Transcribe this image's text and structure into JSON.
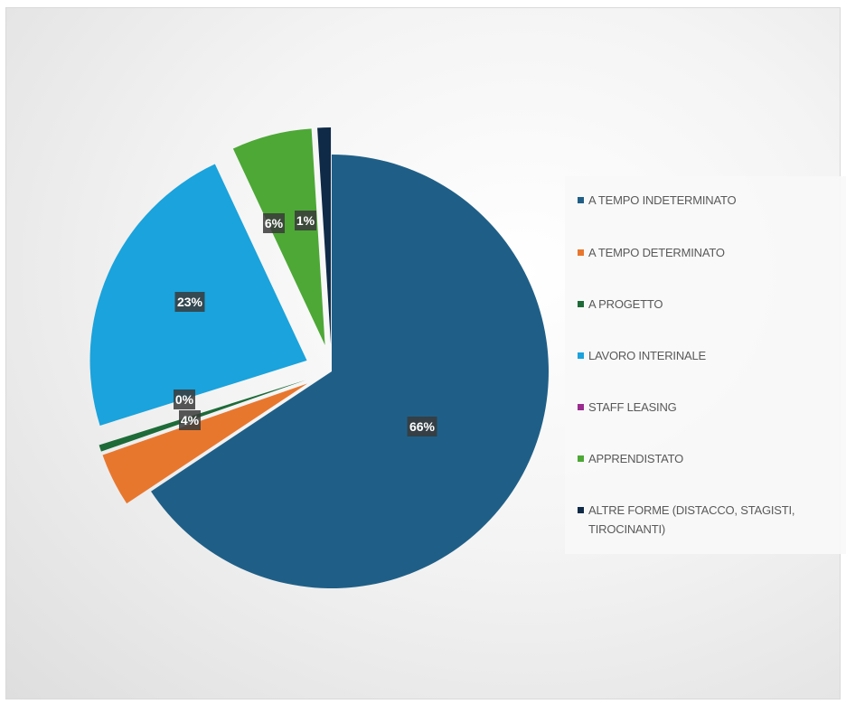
{
  "chart_data": {
    "type": "pie",
    "exploded": true,
    "legend_position": "right",
    "slices": [
      {
        "label": "A TEMPO INDETERMINATO",
        "value": 66,
        "data_label": "66%",
        "color": "#1F5F87"
      },
      {
        "label": "A TEMPO DETERMINATO",
        "value": 4,
        "data_label": "4%",
        "color": "#E8772E"
      },
      {
        "label": "A PROGETTO",
        "value": 0.5,
        "data_label": "0%",
        "color": "#1E6B38"
      },
      {
        "label": "LAVORO INTERINALE",
        "value": 23,
        "data_label": "23%",
        "color": "#1AA3DC"
      },
      {
        "label": "STAFF LEASING",
        "value": 0,
        "data_label": "",
        "color": "#9A2C8E"
      },
      {
        "label": "APPRENDISTATO",
        "value": 6,
        "data_label": "6%",
        "color": "#4DA836"
      },
      {
        "label": "ALTRE FORME (DISTACCO, STAGISTI, TIROCINANTI)",
        "value": 1,
        "data_label": "1%",
        "color": "#0E2A47"
      }
    ]
  }
}
